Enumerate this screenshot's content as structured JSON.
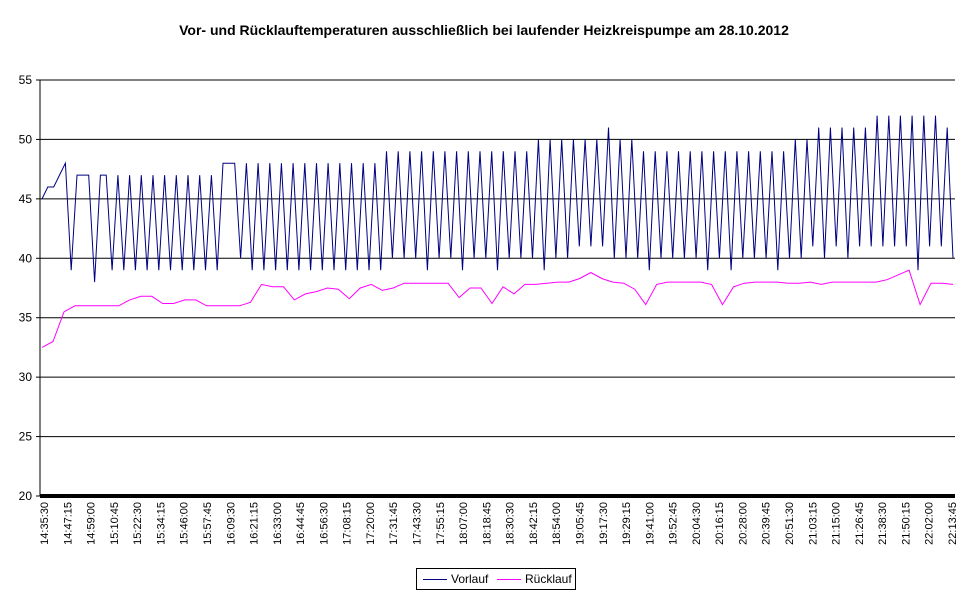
{
  "chart_data": {
    "type": "line",
    "title": "Vor- und Rücklauftemperaturen ausschließlich bei laufender Heizkreispumpe am 28.10.2012",
    "xlabel": "",
    "ylabel": "",
    "ylim": [
      20,
      55
    ],
    "yticks": [
      20,
      25,
      30,
      35,
      40,
      45,
      50,
      55
    ],
    "grid": true,
    "legend_position": "bottom",
    "x_tick_labels": [
      "14:35:30",
      "14:47:15",
      "14:59:00",
      "15:10:45",
      "15:22:30",
      "15:34:15",
      "15:46:00",
      "15:57:45",
      "16:09:30",
      "16:21:15",
      "16:33:00",
      "16:44:45",
      "16:56:30",
      "17:08:15",
      "17:20:00",
      "17:31:45",
      "17:43:30",
      "17:55:15",
      "18:07:00",
      "18:18:45",
      "18:30:30",
      "18:42:15",
      "18:54:00",
      "19:05:45",
      "19:17:30",
      "19:29:15",
      "19:41:00",
      "19:52:45",
      "20:04:30",
      "20:16:15",
      "20:28:00",
      "20:39:45",
      "20:51:30",
      "21:03:15",
      "21:15:00",
      "21:26:45",
      "21:38:30",
      "21:50:15",
      "22:02:00",
      "22:13:45"
    ],
    "series": [
      {
        "name": "Vorlauf",
        "color": "#000080",
        "values": [
          45,
          46,
          46,
          47,
          48,
          39,
          47,
          47,
          47,
          38,
          47,
          47,
          39,
          47,
          39,
          47,
          39,
          47,
          39,
          47,
          39,
          47,
          39,
          47,
          39,
          47,
          39,
          47,
          39,
          47,
          39,
          48,
          48,
          48,
          40,
          48,
          39,
          48,
          39,
          48,
          39,
          48,
          39,
          48,
          39,
          48,
          39,
          48,
          39,
          48,
          39,
          48,
          39,
          48,
          39,
          48,
          39,
          48,
          39,
          49,
          40,
          49,
          40,
          49,
          40,
          49,
          39,
          49,
          40,
          49,
          40,
          49,
          39,
          49,
          40,
          49,
          40,
          49,
          39,
          49,
          40,
          49,
          40,
          49,
          40,
          50,
          39,
          50,
          40,
          50,
          40,
          50,
          41,
          50,
          41,
          50,
          41,
          51,
          40,
          50,
          40,
          50,
          40,
          49,
          39,
          49,
          40,
          49,
          40,
          49,
          40,
          49,
          40,
          49,
          39,
          49,
          40,
          49,
          39,
          49,
          40,
          49,
          40,
          49,
          40,
          49,
          39,
          49,
          40,
          50,
          40,
          50,
          41,
          51,
          40,
          51,
          41,
          51,
          40,
          51,
          41,
          51,
          41,
          52,
          41,
          52,
          41,
          52,
          41,
          52,
          39,
          52,
          41,
          52,
          41,
          51,
          40
        ],
        "note_precision": "approximate oscillation between ~39 and ~48-52"
      },
      {
        "name": "Rücklauf",
        "color": "#ff00ff",
        "values": [
          32.5,
          33,
          35.5,
          36,
          36,
          36,
          36,
          36,
          36.5,
          36.8,
          36.8,
          36.2,
          36.2,
          36.5,
          36.5,
          36,
          36,
          36,
          36,
          36.3,
          37.8,
          37.6,
          37.6,
          36.5,
          37,
          37.2,
          37.5,
          37.4,
          36.6,
          37.5,
          37.8,
          37.3,
          37.5,
          37.9,
          37.9,
          37.9,
          37.9,
          37.9,
          36.7,
          37.5,
          37.5,
          36.2,
          37.6,
          37,
          37.8,
          37.8,
          37.9,
          38,
          38,
          38.3,
          38.8,
          38.3,
          38,
          37.9,
          37.4,
          36.1,
          37.8,
          38,
          38,
          38,
          38,
          37.8,
          36.1,
          37.6,
          37.9,
          38,
          38,
          38,
          37.9,
          37.9,
          38,
          37.8,
          38,
          38,
          38,
          38,
          38,
          38.2,
          38.6,
          39,
          36.1,
          37.9,
          37.9,
          37.8
        ]
      }
    ]
  },
  "legend": {
    "vorlauf_label": "Vorlauf",
    "ruecklauf_label": "Rücklauf"
  }
}
